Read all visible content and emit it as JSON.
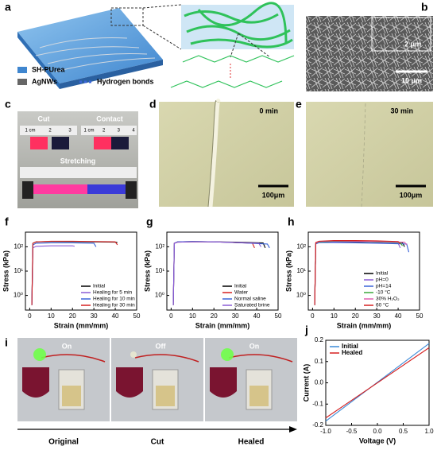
{
  "panel_a": {
    "label": "a",
    "legend": [
      "SH-PUrea",
      "AgNWs",
      "Hydrogen bonds"
    ]
  },
  "panel_b": {
    "label": "b",
    "scale_inset": "2 μm",
    "scale_main": "10 μm"
  },
  "panel_c": {
    "label": "c",
    "cut": "Cut",
    "contact": "Contact",
    "stretching": "Stretching",
    "ruler_left": [
      "1 cm",
      "2",
      "3"
    ],
    "ruler_right": [
      "1 cm",
      "2",
      "3",
      "4"
    ],
    "ruler_bottom": [
      "1 cm",
      "2",
      "3",
      "4",
      "5",
      "6",
      "7"
    ]
  },
  "panel_d": {
    "label": "d",
    "time": "0 min",
    "scale": "100μm"
  },
  "panel_e": {
    "label": "e",
    "time": "30 min",
    "scale": "100μm"
  },
  "panel_i": {
    "label": "i",
    "states": [
      "On",
      "Off",
      "On"
    ],
    "stages": [
      "Original",
      "Cut",
      "Healed"
    ]
  },
  "chart_data": [
    {
      "type": "line",
      "panel_label": "f",
      "xlabel": "Strain (mm/mm)",
      "ylabel": "Stress (kPa)",
      "log_y": true,
      "xlim": [
        -2,
        50
      ],
      "ylim": [
        0.25,
        400
      ],
      "xticks": [
        0,
        10,
        20,
        30,
        40,
        50
      ],
      "yticks": [
        {
          "value": 1,
          "label": "10⁰"
        },
        {
          "value": 10,
          "label": "10¹"
        },
        {
          "value": 100,
          "label": "10²"
        }
      ],
      "legend": "lower right",
      "series": [
        {
          "name": "Initial",
          "color": "#000000",
          "x": [
            1,
            1.5,
            3,
            10,
            20,
            30,
            40,
            41
          ],
          "values": [
            0.4,
            140,
            160,
            165,
            165,
            160,
            155,
            150
          ]
        },
        {
          "name": "Healing for 5 min",
          "color": "#8a5cd6",
          "x": [
            1,
            1.5,
            3,
            10,
            20,
            21
          ],
          "values": [
            0.4,
            90,
            105,
            110,
            110,
            105
          ]
        },
        {
          "name": "Healing for 10 min",
          "color": "#3a64d8",
          "x": [
            1,
            1.5,
            3,
            10,
            20,
            30,
            31
          ],
          "values": [
            0.4,
            120,
            140,
            145,
            145,
            140,
            100
          ]
        },
        {
          "name": "Healing for 30 min",
          "color": "#d62020",
          "x": [
            1,
            1.5,
            3,
            10,
            20,
            30,
            40,
            41
          ],
          "values": [
            0.4,
            140,
            160,
            170,
            170,
            165,
            160,
            120
          ]
        }
      ]
    },
    {
      "type": "line",
      "panel_label": "g",
      "xlabel": "Strain (mm/mm)",
      "ylabel": "Stress (kPa)",
      "log_y": true,
      "xlim": [
        -2,
        50
      ],
      "ylim": [
        0.25,
        400
      ],
      "xticks": [
        0,
        10,
        20,
        30,
        40,
        50
      ],
      "yticks": [
        {
          "value": 1,
          "label": "10⁰"
        },
        {
          "value": 10,
          "label": "10¹"
        },
        {
          "value": 100,
          "label": "10²"
        }
      ],
      "legend": "lower right",
      "series": [
        {
          "name": "Initial",
          "color": "#000000",
          "x": [
            1,
            1.5,
            3,
            10,
            20,
            30,
            43,
            44
          ],
          "values": [
            0.4,
            140,
            160,
            165,
            160,
            155,
            145,
            90
          ]
        },
        {
          "name": "Water",
          "color": "#d62020",
          "x": [
            1,
            1.5,
            3,
            10,
            20,
            30,
            38,
            39
          ],
          "values": [
            0.4,
            140,
            155,
            160,
            160,
            150,
            140,
            90
          ]
        },
        {
          "name": "Normal saline",
          "color": "#3a64d8",
          "x": [
            1,
            1.5,
            3,
            10,
            20,
            30,
            45,
            46
          ],
          "values": [
            0.4,
            140,
            160,
            165,
            160,
            150,
            130,
            90
          ]
        },
        {
          "name": "Saturated brine",
          "color": "#8a5cd6",
          "x": [
            1,
            1.5,
            3,
            10,
            20,
            30,
            41,
            42
          ],
          "values": [
            0.4,
            140,
            155,
            160,
            160,
            150,
            140,
            100
          ]
        }
      ]
    },
    {
      "type": "line",
      "panel_label": "h",
      "xlabel": "Strain (mm/mm)",
      "ylabel": "Stress (kPa)",
      "log_y": true,
      "xlim": [
        -2,
        50
      ],
      "ylim": [
        0.25,
        400
      ],
      "xticks": [
        0,
        10,
        20,
        30,
        40,
        50
      ],
      "yticks": [
        {
          "value": 1,
          "label": "10⁰"
        },
        {
          "value": 10,
          "label": "10¹"
        },
        {
          "value": 100,
          "label": "10²"
        }
      ],
      "legend": "lower right",
      "series": [
        {
          "name": "Initial",
          "color": "#000000",
          "x": [
            1,
            1.5,
            3,
            10,
            20,
            30,
            42,
            43
          ],
          "values": [
            0.4,
            140,
            160,
            165,
            165,
            160,
            150,
            100
          ]
        },
        {
          "name": "pH=0",
          "color": "#8a5cd6",
          "x": [
            1,
            1.5,
            3,
            10,
            20,
            30,
            40,
            41
          ],
          "values": [
            0.4,
            130,
            150,
            155,
            150,
            145,
            140,
            90
          ]
        },
        {
          "name": "pH=14",
          "color": "#3a64d8",
          "x": [
            1,
            1.5,
            3,
            10,
            20,
            30,
            44,
            45
          ],
          "values": [
            0.4,
            130,
            150,
            150,
            145,
            140,
            130,
            60
          ]
        },
        {
          "name": "-10 °C",
          "color": "#3aa83a",
          "x": [
            1,
            1.5,
            3,
            10,
            20,
            30,
            41,
            42
          ],
          "values": [
            0.4,
            140,
            160,
            170,
            170,
            160,
            150,
            110
          ]
        },
        {
          "name": "30% H₂O₂",
          "color": "#e060b0",
          "x": [
            1,
            1.5,
            3,
            10,
            20,
            30,
            43,
            44
          ],
          "values": [
            0.4,
            140,
            165,
            175,
            170,
            165,
            155,
            120
          ]
        },
        {
          "name": "60 °C",
          "color": "#d62020",
          "x": [
            1,
            1.5,
            3,
            10,
            20,
            30,
            40,
            41
          ],
          "values": [
            0.4,
            150,
            170,
            180,
            180,
            175,
            165,
            130
          ]
        }
      ]
    },
    {
      "type": "line",
      "panel_label": "j",
      "xlabel": "Voltage (V)",
      "ylabel": "Current (A)",
      "log_y": false,
      "xlim": [
        -1,
        1
      ],
      "ylim": [
        -0.2,
        0.2
      ],
      "xticks": [
        {
          "value": -1,
          "label": "-1.0"
        },
        -0.5,
        {
          "value": 0,
          "label": "0.0"
        },
        0.5,
        {
          "value": 1,
          "label": "1.0"
        }
      ],
      "yticks": [
        -0.2,
        -0.1,
        {
          "value": 0,
          "label": "0.0"
        },
        0.1,
        0.2
      ],
      "legend": "upper left",
      "series": [
        {
          "name": "Initial",
          "color": "#3a8ad8",
          "x": [
            -1,
            1
          ],
          "values": [
            -0.18,
            0.185
          ]
        },
        {
          "name": "Healed",
          "color": "#d62020",
          "x": [
            -1,
            1
          ],
          "values": [
            -0.165,
            0.165
          ]
        }
      ]
    }
  ]
}
